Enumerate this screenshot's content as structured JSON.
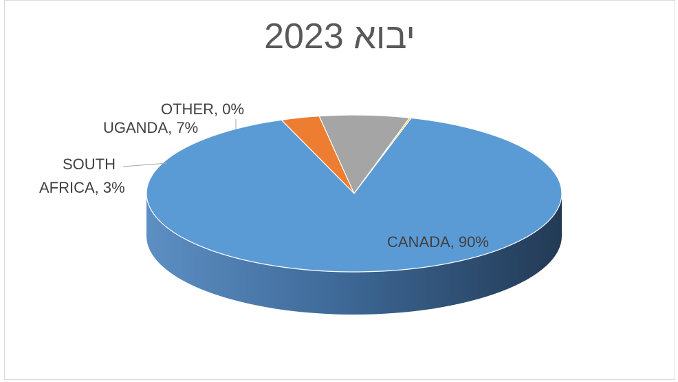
{
  "chart_data": {
    "type": "pie",
    "title": "יבוא 2023",
    "style": "3d",
    "slices": [
      {
        "label": "CANADA",
        "value": 90,
        "display": "CANADA, 90%",
        "color": "#5b9bd5"
      },
      {
        "label": "SOUTH AFRICA",
        "value": 3,
        "display_lines": [
          "SOUTH",
          "AFRICA, 3%"
        ],
        "color": "#ed7d31"
      },
      {
        "label": "UGANDA",
        "value": 7,
        "display": "UGANDA, 7%",
        "color": "#a5a5a5"
      },
      {
        "label": "OTHER",
        "value": 0,
        "display": "OTHER, 0%",
        "color": "#ffc000"
      }
    ]
  }
}
